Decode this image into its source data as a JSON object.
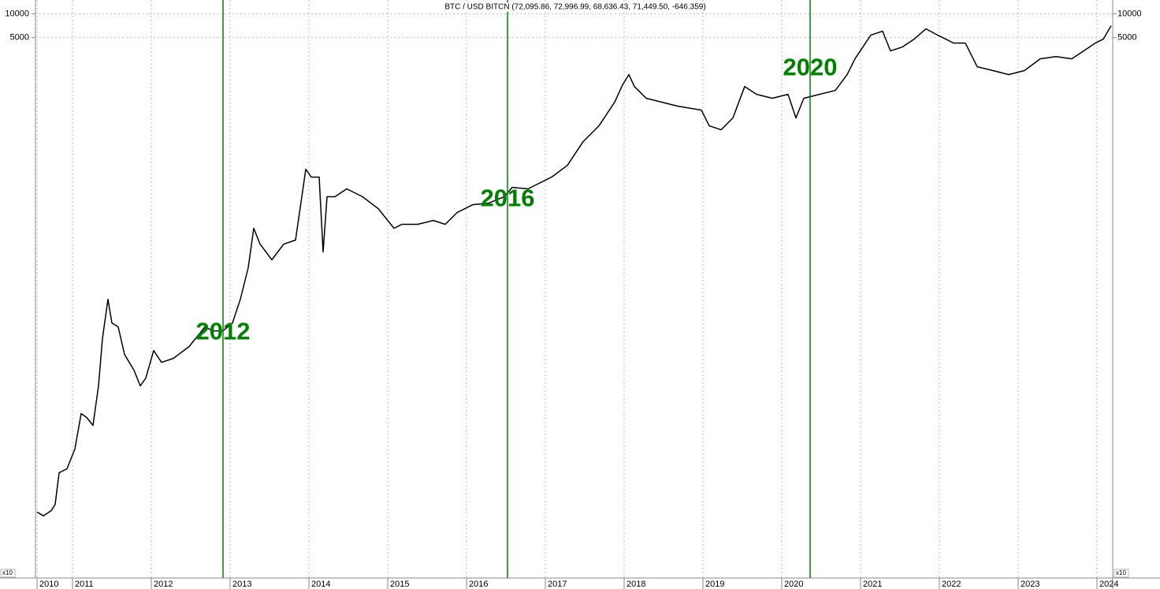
{
  "chart_data": {
    "type": "line",
    "title": "BTC / USD BITCN (72,095.86, 72,996.99, 68,636.43, 71,449.50, -646.359)",
    "scale_label": "x10",
    "log_y": true,
    "grid": true,
    "xlim": [
      2010.53,
      2024.2
    ],
    "ylim": [
      0.0007,
      15000
    ],
    "yticks": [
      10000,
      5000
    ],
    "xticks": [
      {
        "value": 2010.55,
        "label": "2010"
      },
      2011,
      2012,
      2013,
      2014,
      2015,
      2016,
      2017,
      2018,
      2019,
      2020,
      2021,
      2022,
      2023,
      2024
    ],
    "x": [
      2010.55,
      2010.63,
      2010.73,
      2010.78,
      2010.83,
      2010.93,
      2011.03,
      2011.11,
      2011.18,
      2011.26,
      2011.33,
      2011.38,
      2011.45,
      2011.5,
      2011.58,
      2011.66,
      2011.78,
      2011.86,
      2011.93,
      2012.03,
      2012.13,
      2012.28,
      2012.48,
      2012.68,
      2012.78,
      2012.91,
      2013.03,
      2013.13,
      2013.23,
      2013.3,
      2013.38,
      2013.53,
      2013.68,
      2013.83,
      2013.91,
      2013.96,
      2014.03,
      2014.13,
      2014.18,
      2014.23,
      2014.33,
      2014.48,
      2014.68,
      2014.88,
      2015.08,
      2015.18,
      2015.38,
      2015.58,
      2015.73,
      2015.88,
      2016.08,
      2016.28,
      2016.48,
      2016.58,
      2016.78,
      2017.08,
      2017.28,
      2017.48,
      2017.68,
      2017.88,
      2017.98,
      2018.06,
      2018.13,
      2018.28,
      2018.48,
      2018.68,
      2018.98,
      2019.08,
      2019.23,
      2019.38,
      2019.53,
      2019.68,
      2019.88,
      2020.08,
      2020.18,
      2020.28,
      2020.48,
      2020.68,
      2020.83,
      2020.93,
      2021.03,
      2021.13,
      2021.28,
      2021.38,
      2021.53,
      2021.68,
      2021.83,
      2021.98,
      2022.18,
      2022.33,
      2022.48,
      2022.68,
      2022.88,
      2023.08,
      2023.28,
      2023.48,
      2023.68,
      2023.83,
      2023.98,
      2024.08,
      2024.18
    ],
    "series": [
      {
        "color": "#000000",
        "values": [
          0.0048,
          0.0043,
          0.005,
          0.006,
          0.0151,
          0.017,
          0.0302,
          0.0851,
          0.0759,
          0.0603,
          0.191,
          0.759,
          2.4,
          1.2,
          1.07,
          0.479,
          0.302,
          0.191,
          0.24,
          0.537,
          0.38,
          0.427,
          0.603,
          1.07,
          0.955,
          0.955,
          1.2,
          2.4,
          6.03,
          19.1,
          12.0,
          7.59,
          12.0,
          13.5,
          47.9,
          107,
          85.1,
          85.1,
          9.55,
          47.9,
          47.9,
          60.3,
          47.9,
          33.9,
          19.1,
          21.4,
          21.4,
          24.0,
          21.4,
          30.2,
          38.0,
          39.8,
          47.9,
          63.1,
          60.3,
          85.1,
          120,
          240,
          380,
          759,
          1260,
          1700,
          1200,
          851,
          759,
          676,
          603,
          380,
          339,
          479,
          1200,
          955,
          851,
          955,
          479,
          851,
          955,
          1070,
          1700,
          2690,
          3800,
          5370,
          6030,
          3390,
          3800,
          4790,
          6460,
          5370,
          4270,
          4270,
          2140,
          1910,
          1700,
          1910,
          2690,
          2880,
          2690,
          3390,
          4270,
          4790,
          7080
        ]
      }
    ],
    "vertical_lines": [
      {
        "x": 2012.91,
        "label": "2012",
        "label_y": 0.9
      },
      {
        "x": 2016.52,
        "label": "2016",
        "label_y": 44
      },
      {
        "x": 2020.36,
        "label": "2020",
        "label_y": 2000
      }
    ],
    "vertical_line_color": "#008000"
  }
}
